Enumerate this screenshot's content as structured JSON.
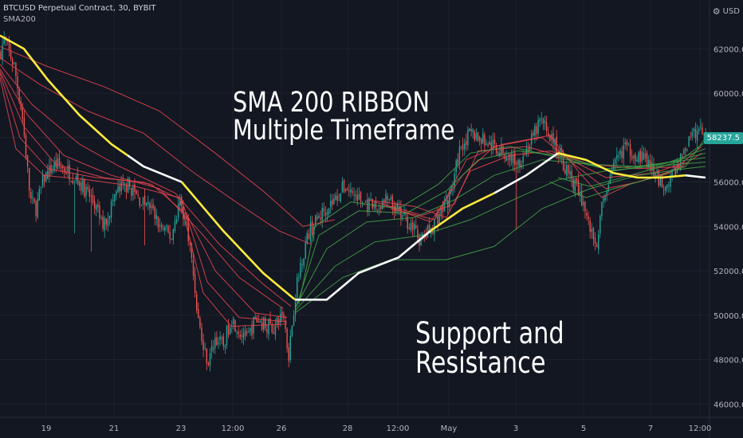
{
  "header": {
    "symbol_line": "BTCUSD Perpetual Contract, 30, BYBIT",
    "indicator": "SMA200",
    "currency": "USD"
  },
  "annotations": {
    "title_line1": "SMA 200 RIBBON",
    "title_line2": "Multiple Timeframe",
    "note": "Support and Resistance"
  },
  "price_tag": "58237.5",
  "colors": {
    "background": "#131722",
    "up": "#26a69a",
    "down": "#ef5350",
    "sma_yellow": "#ffeb3b",
    "sma_white": "#ffffff",
    "ribbon_red": "#e0444b",
    "ribbon_green": "#43a047",
    "price_tag": "#26a69a",
    "axis_text": "#b2b5be"
  },
  "chart_data": {
    "type": "candlestick",
    "title": "SMA 200 RIBBON Multiple Timeframe",
    "x_ticks": [
      "19",
      "21",
      "23",
      "12:00",
      "26",
      "28",
      "12:00",
      "May",
      "3",
      "5",
      "7",
      "12:00"
    ],
    "y_ticks": [
      "46000.0",
      "48000.0",
      "50000.0",
      "52000.0",
      "54000.0",
      "56000.0",
      "58000.0",
      "60000.0",
      "62000.0"
    ],
    "ylim": [
      45400,
      64200
    ],
    "last_price": 58237.5,
    "price_path": [
      [
        0,
        61800
      ],
      [
        5,
        62400
      ],
      [
        10,
        62000
      ],
      [
        18,
        61200
      ],
      [
        28,
        59000
      ],
      [
        38,
        55200
      ],
      [
        45,
        54800
      ],
      [
        55,
        56200
      ],
      [
        70,
        56800
      ],
      [
        85,
        56500
      ],
      [
        100,
        56000
      ],
      [
        115,
        55200
      ],
      [
        130,
        54000
      ],
      [
        145,
        55500
      ],
      [
        160,
        55900
      ],
      [
        175,
        55200
      ],
      [
        190,
        54800
      ],
      [
        200,
        54000
      ],
      [
        215,
        53500
      ],
      [
        225,
        55200
      ],
      [
        235,
        54000
      ],
      [
        242,
        52000
      ],
      [
        248,
        50000
      ],
      [
        255,
        48500
      ],
      [
        262,
        47900
      ],
      [
        270,
        49000
      ],
      [
        280,
        48600
      ],
      [
        290,
        49900
      ],
      [
        300,
        49300
      ],
      [
        310,
        48900
      ],
      [
        320,
        49800
      ],
      [
        332,
        49600
      ],
      [
        345,
        49400
      ],
      [
        355,
        50200
      ],
      [
        362,
        48200
      ],
      [
        370,
        50800
      ],
      [
        378,
        52500
      ],
      [
        388,
        53800
      ],
      [
        398,
        54300
      ],
      [
        410,
        54900
      ],
      [
        420,
        55200
      ],
      [
        432,
        55800
      ],
      [
        445,
        55400
      ],
      [
        458,
        55000
      ],
      [
        472,
        54800
      ],
      [
        485,
        55200
      ],
      [
        500,
        54600
      ],
      [
        515,
        54100
      ],
      [
        528,
        53300
      ],
      [
        540,
        53900
      ],
      [
        552,
        54600
      ],
      [
        565,
        55400
      ],
      [
        578,
        57700
      ],
      [
        592,
        58200
      ],
      [
        605,
        57900
      ],
      [
        620,
        57600
      ],
      [
        635,
        57200
      ],
      [
        650,
        56900
      ],
      [
        665,
        57700
      ],
      [
        678,
        58800
      ],
      [
        690,
        58100
      ],
      [
        700,
        57400
      ],
      [
        712,
        56400
      ],
      [
        722,
        55800
      ],
      [
        732,
        55000
      ],
      [
        740,
        53900
      ],
      [
        748,
        53200
      ],
      [
        758,
        55500
      ],
      [
        770,
        56600
      ],
      [
        782,
        57600
      ],
      [
        796,
        57300
      ],
      [
        810,
        57000
      ],
      [
        822,
        56300
      ],
      [
        835,
        55800
      ],
      [
        848,
        56600
      ],
      [
        860,
        57600
      ],
      [
        872,
        58200
      ],
      [
        884,
        58400
      ]
    ],
    "series": [
      {
        "name": "SMA200",
        "color": "#ffeb3b/#ffffff",
        "values": [
          [
            0,
            62600
          ],
          [
            30,
            62000
          ],
          [
            60,
            60600
          ],
          [
            100,
            59000
          ],
          [
            140,
            57700
          ],
          [
            180,
            56700
          ],
          [
            228,
            56000
          ],
          [
            280,
            53800
          ],
          [
            330,
            51900
          ],
          [
            370,
            50700
          ],
          [
            410,
            50700
          ],
          [
            450,
            51900
          ],
          [
            500,
            52600
          ],
          [
            540,
            53800
          ],
          [
            580,
            54800
          ],
          [
            620,
            55500
          ],
          [
            660,
            56300
          ],
          [
            700,
            57300
          ],
          [
            735,
            57000
          ],
          [
            770,
            56400
          ],
          [
            800,
            56200
          ],
          [
            830,
            56200
          ],
          [
            860,
            56300
          ],
          [
            885,
            56200
          ]
        ]
      },
      {
        "color": "#e0444b",
        "values": [
          [
            0,
            62100
          ],
          [
            60,
            61200
          ],
          [
            130,
            60300
          ],
          [
            200,
            59200
          ],
          [
            270,
            57300
          ],
          [
            330,
            55600
          ],
          [
            380,
            54000
          ],
          [
            420,
            54300
          ]
        ]
      },
      {
        "color": "#e0444b",
        "values": [
          [
            0,
            61600
          ],
          [
            50,
            60400
          ],
          [
            110,
            59200
          ],
          [
            180,
            58200
          ],
          [
            240,
            56500
          ],
          [
            300,
            55000
          ],
          [
            350,
            53800
          ],
          [
            390,
            53200
          ]
        ]
      },
      {
        "color": "#e0444b",
        "values": [
          [
            0,
            61300
          ],
          [
            40,
            59500
          ],
          [
            100,
            57700
          ],
          [
            150,
            56700
          ],
          [
            220,
            55500
          ],
          [
            275,
            53200
          ],
          [
            330,
            51400
          ],
          [
            365,
            50400
          ]
        ]
      },
      {
        "color": "#e0444b",
        "values": [
          [
            0,
            61100
          ],
          [
            35,
            59000
          ],
          [
            80,
            57200
          ],
          [
            140,
            56300
          ],
          [
            200,
            55700
          ],
          [
            250,
            53800
          ],
          [
            300,
            51700
          ],
          [
            355,
            50300
          ]
        ]
      },
      {
        "color": "#e0444b",
        "values": [
          [
            0,
            61000
          ],
          [
            30,
            58500
          ],
          [
            70,
            56800
          ],
          [
            130,
            56200
          ],
          [
            190,
            55900
          ],
          [
            235,
            54500
          ],
          [
            270,
            52000
          ],
          [
            320,
            50100
          ],
          [
            360,
            49900
          ]
        ]
      },
      {
        "color": "#e0444b",
        "values": [
          [
            0,
            60900
          ],
          [
            25,
            58000
          ],
          [
            60,
            56600
          ],
          [
            120,
            56200
          ],
          [
            180,
            56000
          ],
          [
            228,
            55200
          ],
          [
            260,
            51500
          ],
          [
            300,
            49900
          ],
          [
            360,
            49700
          ]
        ]
      },
      {
        "color": "#e0444b",
        "values": [
          [
            0,
            60700
          ],
          [
            20,
            57500
          ],
          [
            55,
            56300
          ],
          [
            110,
            56100
          ],
          [
            170,
            55800
          ],
          [
            225,
            55300
          ],
          [
            255,
            51000
          ],
          [
            290,
            49500
          ],
          [
            360,
            49600
          ]
        ]
      },
      {
        "color": "#e0444b",
        "values": [
          [
            460,
            55200
          ],
          [
            520,
            54900
          ],
          [
            560,
            54400
          ],
          [
            590,
            56500
          ],
          [
            640,
            57200
          ],
          [
            690,
            57400
          ],
          [
            740,
            56800
          ],
          [
            800,
            56600
          ],
          [
            860,
            56700
          ]
        ]
      },
      {
        "color": "#e0444b",
        "values": [
          [
            470,
            55100
          ],
          [
            530,
            54500
          ],
          [
            570,
            55000
          ],
          [
            600,
            57400
          ],
          [
            660,
            57600
          ],
          [
            710,
            57100
          ],
          [
            760,
            56200
          ],
          [
            820,
            56400
          ],
          [
            860,
            56900
          ]
        ]
      },
      {
        "color": "#e0444b",
        "values": [
          [
            480,
            55000
          ],
          [
            540,
            54200
          ],
          [
            580,
            56300
          ],
          [
            620,
            57600
          ],
          [
            680,
            58000
          ],
          [
            720,
            56800
          ],
          [
            760,
            55700
          ],
          [
            800,
            56000
          ],
          [
            850,
            56600
          ],
          [
            880,
            57300
          ]
        ]
      },
      {
        "color": "#e0444b",
        "values": [
          [
            490,
            54800
          ],
          [
            545,
            54300
          ],
          [
            585,
            57000
          ],
          [
            630,
            57700
          ],
          [
            690,
            58100
          ],
          [
            725,
            56500
          ],
          [
            755,
            55300
          ],
          [
            790,
            55900
          ],
          [
            840,
            56400
          ],
          [
            880,
            57600
          ]
        ]
      },
      {
        "color": "#43a047",
        "values": [
          [
            370,
            50100
          ],
          [
            430,
            51700
          ],
          [
            490,
            52500
          ],
          [
            560,
            52500
          ],
          [
            620,
            53100
          ],
          [
            680,
            54800
          ],
          [
            740,
            55700
          ],
          [
            800,
            56300
          ],
          [
            860,
            56600
          ],
          [
            885,
            56700
          ]
        ]
      },
      {
        "color": "#43a047",
        "values": [
          [
            370,
            50200
          ],
          [
            420,
            52200
          ],
          [
            470,
            53300
          ],
          [
            530,
            53600
          ],
          [
            590,
            54300
          ],
          [
            650,
            55300
          ],
          [
            700,
            56100
          ],
          [
            760,
            56500
          ],
          [
            820,
            56700
          ],
          [
            885,
            56900
          ]
        ]
      },
      {
        "color": "#43a047",
        "values": [
          [
            370,
            50300
          ],
          [
            410,
            53000
          ],
          [
            460,
            54200
          ],
          [
            520,
            54400
          ],
          [
            570,
            55200
          ],
          [
            620,
            56300
          ],
          [
            680,
            57000
          ],
          [
            740,
            56800
          ],
          [
            800,
            56700
          ],
          [
            885,
            57100
          ]
        ]
      },
      {
        "color": "#43a047",
        "values": [
          [
            372,
            50400
          ],
          [
            400,
            53600
          ],
          [
            450,
            54700
          ],
          [
            510,
            54600
          ],
          [
            560,
            55600
          ],
          [
            600,
            57000
          ],
          [
            650,
            57400
          ],
          [
            700,
            57200
          ],
          [
            760,
            56600
          ],
          [
            830,
            56800
          ],
          [
            885,
            57300
          ]
        ]
      },
      {
        "color": "#43a047",
        "values": [
          [
            375,
            50500
          ],
          [
            395,
            54000
          ],
          [
            440,
            55100
          ],
          [
            500,
            54800
          ],
          [
            550,
            55900
          ],
          [
            590,
            57300
          ],
          [
            640,
            57600
          ],
          [
            700,
            57100
          ],
          [
            770,
            56500
          ],
          [
            840,
            56900
          ],
          [
            885,
            57500
          ]
        ]
      },
      {
        "color": "#43a047",
        "values": [
          [
            700,
            56200
          ],
          [
            740,
            55800
          ],
          [
            770,
            56100
          ],
          [
            810,
            56500
          ],
          [
            850,
            56900
          ],
          [
            885,
            57800
          ]
        ]
      },
      {
        "color": "#43a047",
        "values": [
          [
            690,
            56000
          ],
          [
            735,
            55300
          ],
          [
            770,
            55700
          ],
          [
            820,
            56200
          ],
          [
            860,
            56700
          ],
          [
            885,
            58000
          ]
        ]
      }
    ]
  }
}
